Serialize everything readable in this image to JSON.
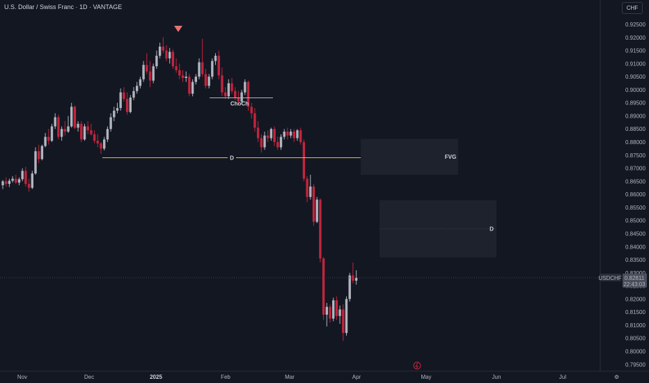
{
  "header": {
    "title": "U.S. Dollar / Swiss Franc · 1D · VANTAGE",
    "currency_button": "CHF"
  },
  "colors": {
    "background": "#131722",
    "up": "#b2b5be",
    "down": "#c2253d",
    "choch_line": "#b2b5be",
    "d_line": "#e0c341",
    "zone": "#1e222d",
    "marker": "#e57373"
  },
  "price_label": {
    "symbol": "USDCHF",
    "price": "0.82811",
    "countdown": "22:43:03",
    "value": 0.82811
  },
  "annotations": {
    "choch": {
      "text": "ChoCh",
      "y": 0.8969
    },
    "d_line": {
      "text": "D",
      "y": 0.874
    },
    "fvg": {
      "text": "FVG",
      "y1": 0.8675,
      "y2": 0.8812
    },
    "lower_zone": {
      "text": "D",
      "y1": 0.8359,
      "y2": 0.8578
    }
  },
  "chart_data": {
    "type": "candlestick",
    "title": "U.S. Dollar / Swiss Franc · 1D · VANTAGE",
    "y_axis": {
      "ticks": [
        "0.92500",
        "0.92000",
        "0.91500",
        "0.91000",
        "0.90500",
        "0.90000",
        "0.89500",
        "0.89000",
        "0.88500",
        "0.88000",
        "0.87500",
        "0.87000",
        "0.86500",
        "0.86000",
        "0.85500",
        "0.85000",
        "0.84500",
        "0.84000",
        "0.83500",
        "0.83000",
        "0.82500",
        "0.82000",
        "0.81500",
        "0.81000",
        "0.80500",
        "0.80000",
        "0.79500"
      ],
      "range": [
        0.7935,
        0.9275
      ]
    },
    "x_axis": {
      "ticks": [
        {
          "label": "Nov",
          "bold": false
        },
        {
          "label": "Dec",
          "bold": false
        },
        {
          "label": "2025",
          "bold": true
        },
        {
          "label": "Feb",
          "bold": false
        },
        {
          "label": "Mar",
          "bold": false
        },
        {
          "label": "Apr",
          "bold": false
        },
        {
          "label": "May",
          "bold": false
        },
        {
          "label": "Jun",
          "bold": false
        },
        {
          "label": "Jul",
          "bold": false
        }
      ]
    },
    "candles": [
      [
        0.8635,
        0.8655,
        0.862,
        0.865
      ],
      [
        0.865,
        0.8665,
        0.863,
        0.864
      ],
      [
        0.864,
        0.866,
        0.8628,
        0.8652
      ],
      [
        0.8652,
        0.867,
        0.8645,
        0.866
      ],
      [
        0.866,
        0.8675,
        0.864,
        0.8645
      ],
      [
        0.8645,
        0.8665,
        0.8635,
        0.8658
      ],
      [
        0.8658,
        0.87,
        0.865,
        0.869
      ],
      [
        0.869,
        0.8705,
        0.863,
        0.864
      ],
      [
        0.864,
        0.866,
        0.861,
        0.8625
      ],
      [
        0.8625,
        0.869,
        0.862,
        0.868
      ],
      [
        0.868,
        0.878,
        0.8675,
        0.8765
      ],
      [
        0.8765,
        0.879,
        0.872,
        0.8735
      ],
      [
        0.8735,
        0.879,
        0.873,
        0.8785
      ],
      [
        0.8785,
        0.8835,
        0.878,
        0.882
      ],
      [
        0.882,
        0.885,
        0.879,
        0.8805
      ],
      [
        0.8805,
        0.887,
        0.88,
        0.886
      ],
      [
        0.886,
        0.891,
        0.885,
        0.8895
      ],
      [
        0.8895,
        0.8905,
        0.881,
        0.882
      ],
      [
        0.882,
        0.886,
        0.8805,
        0.885
      ],
      [
        0.885,
        0.888,
        0.8825,
        0.884
      ],
      [
        0.884,
        0.89,
        0.8835,
        0.886
      ],
      [
        0.886,
        0.895,
        0.8855,
        0.8935
      ],
      [
        0.8935,
        0.894,
        0.885,
        0.8855
      ],
      [
        0.8855,
        0.888,
        0.884,
        0.887
      ],
      [
        0.887,
        0.888,
        0.88,
        0.881
      ],
      [
        0.881,
        0.887,
        0.8805,
        0.886
      ],
      [
        0.886,
        0.888,
        0.883,
        0.8845
      ],
      [
        0.8845,
        0.887,
        0.8825,
        0.883
      ],
      [
        0.883,
        0.8845,
        0.8795,
        0.8805
      ],
      [
        0.8805,
        0.883,
        0.878,
        0.8795
      ],
      [
        0.8795,
        0.88,
        0.8755,
        0.8775
      ],
      [
        0.8775,
        0.882,
        0.8768,
        0.881
      ],
      [
        0.881,
        0.886,
        0.88,
        0.885
      ],
      [
        0.885,
        0.891,
        0.884,
        0.8895
      ],
      [
        0.8895,
        0.8935,
        0.888,
        0.892
      ],
      [
        0.892,
        0.895,
        0.891,
        0.893
      ],
      [
        0.893,
        0.9005,
        0.892,
        0.899
      ],
      [
        0.899,
        0.901,
        0.8955,
        0.8965
      ],
      [
        0.8965,
        0.899,
        0.8905,
        0.8915
      ],
      [
        0.8915,
        0.898,
        0.891,
        0.897
      ],
      [
        0.897,
        0.901,
        0.896,
        0.8995
      ],
      [
        0.8995,
        0.903,
        0.8985,
        0.9015
      ],
      [
        0.9015,
        0.905,
        0.9005,
        0.904
      ],
      [
        0.904,
        0.911,
        0.903,
        0.9095
      ],
      [
        0.9095,
        0.914,
        0.906,
        0.907
      ],
      [
        0.907,
        0.911,
        0.901,
        0.9035
      ],
      [
        0.9035,
        0.91,
        0.9025,
        0.909
      ],
      [
        0.909,
        0.915,
        0.908,
        0.913
      ],
      [
        0.913,
        0.918,
        0.912,
        0.9165
      ],
      [
        0.9165,
        0.92,
        0.914,
        0.915
      ],
      [
        0.915,
        0.917,
        0.911,
        0.912
      ],
      [
        0.912,
        0.916,
        0.91,
        0.9145
      ],
      [
        0.9145,
        0.9155,
        0.908,
        0.909
      ],
      [
        0.909,
        0.912,
        0.9065,
        0.9075
      ],
      [
        0.9075,
        0.91,
        0.904,
        0.9055
      ],
      [
        0.9055,
        0.9075,
        0.903,
        0.9045
      ],
      [
        0.9045,
        0.907,
        0.903,
        0.905
      ],
      [
        0.905,
        0.906,
        0.8975,
        0.8985
      ],
      [
        0.8985,
        0.904,
        0.8975,
        0.903
      ],
      [
        0.903,
        0.906,
        0.902,
        0.905
      ],
      [
        0.905,
        0.912,
        0.904,
        0.9105
      ],
      [
        0.9105,
        0.9195,
        0.905,
        0.906
      ],
      [
        0.906,
        0.908,
        0.9005,
        0.9015
      ],
      [
        0.9015,
        0.906,
        0.9005,
        0.905
      ],
      [
        0.905,
        0.912,
        0.904,
        0.911
      ],
      [
        0.911,
        0.914,
        0.9095,
        0.913
      ],
      [
        0.913,
        0.915,
        0.904,
        0.9055
      ],
      [
        0.9055,
        0.9085,
        0.8975,
        0.899
      ],
      [
        0.899,
        0.901,
        0.8965,
        0.8975
      ],
      [
        0.8975,
        0.904,
        0.8965,
        0.9025
      ],
      [
        0.9025,
        0.9045,
        0.8985,
        0.8995
      ],
      [
        0.8995,
        0.901,
        0.896,
        0.897
      ],
      [
        0.897,
        0.8995,
        0.894,
        0.8955
      ],
      [
        0.8955,
        0.9,
        0.8945,
        0.899
      ],
      [
        0.899,
        0.904,
        0.898,
        0.903
      ],
      [
        0.903,
        0.9035,
        0.892,
        0.8935
      ],
      [
        0.8935,
        0.895,
        0.889,
        0.891
      ],
      [
        0.891,
        0.893,
        0.884,
        0.8855
      ],
      [
        0.8855,
        0.888,
        0.88,
        0.8815
      ],
      [
        0.8815,
        0.883,
        0.876,
        0.878
      ],
      [
        0.878,
        0.884,
        0.877,
        0.8825
      ],
      [
        0.8825,
        0.8845,
        0.88,
        0.8815
      ],
      [
        0.8815,
        0.8855,
        0.8805,
        0.885
      ],
      [
        0.885,
        0.886,
        0.8785,
        0.88
      ],
      [
        0.88,
        0.882,
        0.877,
        0.878
      ],
      [
        0.878,
        0.883,
        0.877,
        0.882
      ],
      [
        0.882,
        0.885,
        0.881,
        0.884
      ],
      [
        0.884,
        0.8855,
        0.881,
        0.8825
      ],
      [
        0.8825,
        0.885,
        0.8815,
        0.884
      ],
      [
        0.884,
        0.885,
        0.88,
        0.8815
      ],
      [
        0.8815,
        0.885,
        0.8805,
        0.8845
      ],
      [
        0.8845,
        0.8855,
        0.879,
        0.88
      ],
      [
        0.88,
        0.881,
        0.865,
        0.866
      ],
      [
        0.866,
        0.867,
        0.857,
        0.859
      ],
      [
        0.859,
        0.8675,
        0.858,
        0.863
      ],
      [
        0.863,
        0.864,
        0.848,
        0.8495
      ],
      [
        0.8495,
        0.859,
        0.849,
        0.858
      ],
      [
        0.858,
        0.8585,
        0.834,
        0.8355
      ],
      [
        0.8355,
        0.836,
        0.812,
        0.814
      ],
      [
        0.814,
        0.8185,
        0.8095,
        0.817
      ],
      [
        0.817,
        0.818,
        0.811,
        0.8125
      ],
      [
        0.8125,
        0.8205,
        0.8115,
        0.8195
      ],
      [
        0.8195,
        0.821,
        0.812,
        0.8135
      ],
      [
        0.8135,
        0.8175,
        0.8105,
        0.816
      ],
      [
        0.816,
        0.818,
        0.804,
        0.807
      ],
      [
        0.807,
        0.821,
        0.806,
        0.82
      ],
      [
        0.82,
        0.83,
        0.819,
        0.829
      ],
      [
        0.829,
        0.834,
        0.826,
        0.827
      ],
      [
        0.827,
        0.831,
        0.8255,
        0.8281
      ]
    ]
  }
}
